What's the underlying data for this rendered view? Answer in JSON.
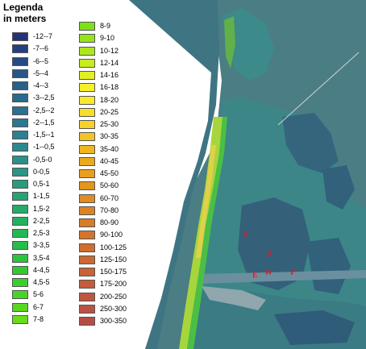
{
  "legend": {
    "title_line1": "Legenda",
    "title_line2": "in meters",
    "col1": [
      {
        "label": "-12--7",
        "color": "#23337a"
      },
      {
        "label": "-7--6",
        "color": "#24407f"
      },
      {
        "label": "-6--5",
        "color": "#254a84"
      },
      {
        "label": "-5--4",
        "color": "#275688"
      },
      {
        "label": "-4--3",
        "color": "#29608b"
      },
      {
        "label": "-3--2,5",
        "color": "#2a6a8e"
      },
      {
        "label": "-2,5--2",
        "color": "#2b7190"
      },
      {
        "label": "-2--1,5",
        "color": "#2c7892"
      },
      {
        "label": "-1,5--1",
        "color": "#2c8092"
      },
      {
        "label": "-1--0,5",
        "color": "#2c8890"
      },
      {
        "label": "-0,5-0",
        "color": "#2b8f8c"
      },
      {
        "label": "0-0,5",
        "color": "#2a9686"
      },
      {
        "label": "0,5-1",
        "color": "#289d7e"
      },
      {
        "label": "1-1,5",
        "color": "#26a474"
      },
      {
        "label": "1,5-2",
        "color": "#24ab69"
      },
      {
        "label": "2-2,5",
        "color": "#22b25e"
      },
      {
        "label": "2,5-3",
        "color": "#23b853"
      },
      {
        "label": "3-3,5",
        "color": "#26be48"
      },
      {
        "label": "3,5-4",
        "color": "#2ac43d"
      },
      {
        "label": "4-4,5",
        "color": "#30ca33"
      },
      {
        "label": "4,5-5",
        "color": "#3ad02b"
      },
      {
        "label": "5-6",
        "color": "#48d424"
      },
      {
        "label": "6-7",
        "color": "#57d820"
      },
      {
        "label": "7-8",
        "color": "#69dc1c"
      }
    ],
    "col2": [
      {
        "label": "8-9",
        "color": "#7ee01a"
      },
      {
        "label": "9-10",
        "color": "#95e41a"
      },
      {
        "label": "10-12",
        "color": "#aee81c"
      },
      {
        "label": "12-14",
        "color": "#c8ec1f"
      },
      {
        "label": "14-16",
        "color": "#e1f024"
      },
      {
        "label": "16-18",
        "color": "#f6f02a"
      },
      {
        "label": "18-20",
        "color": "#fae92c"
      },
      {
        "label": "20-25",
        "color": "#f9de29"
      },
      {
        "label": "25-30",
        "color": "#f7d226"
      },
      {
        "label": "30-35",
        "color": "#f3c423"
      },
      {
        "label": "35-40",
        "color": "#efb620"
      },
      {
        "label": "40-45",
        "color": "#ebaa1e"
      },
      {
        "label": "45-50",
        "color": "#e89f1d"
      },
      {
        "label": "50-60",
        "color": "#e4951e"
      },
      {
        "label": "60-70",
        "color": "#e08c20"
      },
      {
        "label": "70-80",
        "color": "#dc8423"
      },
      {
        "label": "80-90",
        "color": "#d87c27"
      },
      {
        "label": "90-100",
        "color": "#d4752b"
      },
      {
        "label": "100-125",
        "color": "#d06e2f"
      },
      {
        "label": "125-150",
        "color": "#cc6833"
      },
      {
        "label": "150-175",
        "color": "#c86237"
      },
      {
        "label": "175-200",
        "color": "#c45c3b"
      },
      {
        "label": "200-250",
        "color": "#c0563f"
      },
      {
        "label": "250-300",
        "color": "#bb5143"
      },
      {
        "label": "300-350",
        "color": "#b64c47"
      }
    ]
  },
  "map": {
    "colors": {
      "sea": "#4e7f86",
      "land_deep": "#2d6f84",
      "land_low": "#3b8a87",
      "polder": "#35637d",
      "dunes": "#a8d83a",
      "coast_green": "#46c045"
    },
    "labels": {
      "s": "S",
      "b": "B",
      "e": "E",
      "w": "W",
      "p": "P"
    }
  }
}
